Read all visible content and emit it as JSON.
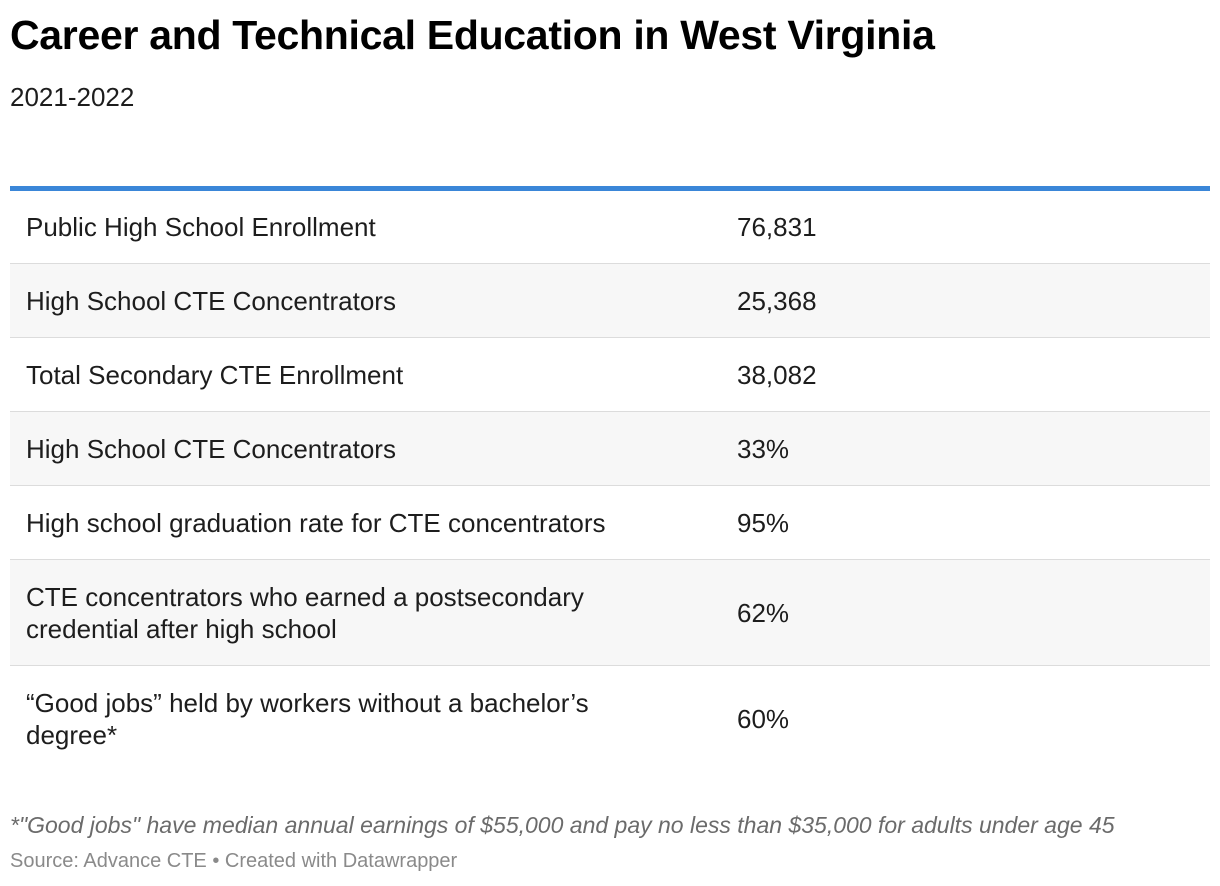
{
  "chart_data": {
    "type": "table",
    "title": "Career and Technical Education in West Virginia",
    "subtitle": "2021-2022",
    "accent_color": "#3a86d8",
    "rows": [
      {
        "label": "Public High School Enrollment",
        "value": "76,831"
      },
      {
        "label": "High School CTE Concentrators",
        "value": "25,368"
      },
      {
        "label": "Total Secondary CTE Enrollment",
        "value": "38,082"
      },
      {
        "label": "High School CTE Concentrators",
        "value": "33%"
      },
      {
        "label": "High school graduation rate for CTE concentrators",
        "value": "95%"
      },
      {
        "label": "CTE concentrators who earned a postsecondary credential after high school",
        "value": "62%"
      },
      {
        "label": "“Good jobs” held by workers without a bachelor’s degree*",
        "value": "60%"
      }
    ],
    "footnote": "*\"Good jobs\" have median annual earnings of $55,000 and pay no less than $35,000 for adults under age 45",
    "source": "Source: Advance CTE • Created with Datawrapper"
  }
}
